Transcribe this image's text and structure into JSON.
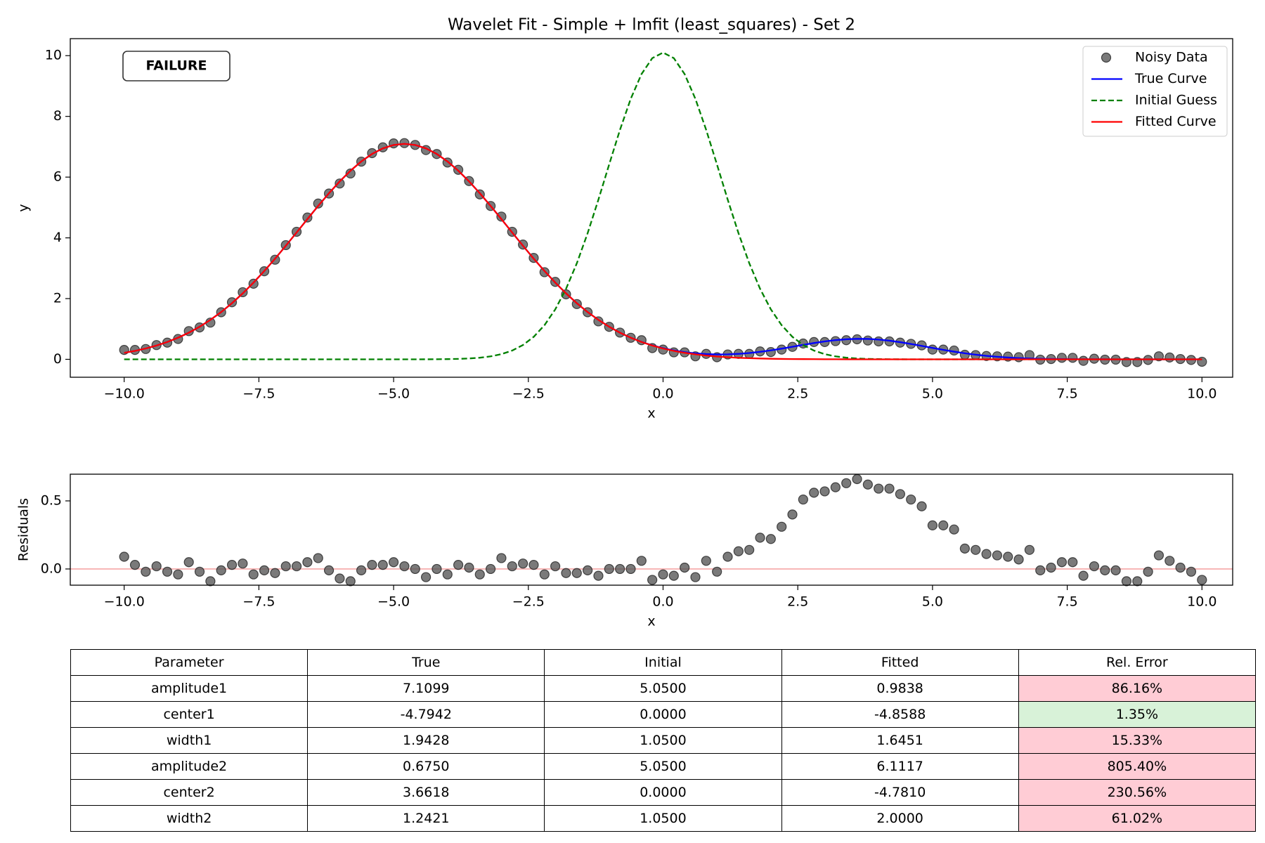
{
  "chart_data": [
    {
      "type": "line",
      "title": "Wavelet Fit - Simple + lmfit (least_squares) - Set 2",
      "xlabel": "x",
      "ylabel": "y",
      "x": [
        -10,
        -9.8,
        -9.6,
        -9.4,
        -9.2,
        -9,
        -8.8,
        -8.6,
        -8.4,
        -8.2,
        -8,
        -7.8,
        -7.6,
        -7.4,
        -7.2,
        -7,
        -6.8,
        -6.6,
        -6.4,
        -6.2,
        -6,
        -5.8,
        -5.6,
        -5.4,
        -5.2,
        -5,
        -4.8,
        -4.6,
        -4.4,
        -4.2,
        -4,
        -3.8,
        -3.6,
        -3.4,
        -3.2,
        -3,
        -2.8,
        -2.6,
        -2.4,
        -2.2,
        -2,
        -1.8,
        -1.6,
        -1.4,
        -1.2,
        -1,
        -0.8,
        -0.6,
        -0.4,
        -0.2,
        0,
        0.2,
        0.4,
        0.6,
        0.8,
        1,
        1.2,
        1.4,
        1.6,
        1.8,
        2,
        2.2,
        2.4,
        2.6,
        2.8,
        3,
        3.2,
        3.4,
        3.6,
        3.8,
        4,
        4.2,
        4.4,
        4.6,
        4.8,
        5,
        5.2,
        5.4,
        5.6,
        5.8,
        6,
        6.2,
        6.4,
        6.6,
        6.8,
        7,
        7.2,
        7.4,
        7.6,
        7.8,
        8,
        8.2,
        8.4,
        8.6,
        8.8,
        9,
        9.2,
        9.4,
        9.6,
        9.8,
        10
      ],
      "series": [
        {
          "name": "Noisy Data",
          "color": "#555555",
          "style": "markers",
          "values": [
            0.31,
            0.31,
            0.34,
            0.47,
            0.55,
            0.67,
            0.93,
            1.05,
            1.21,
            1.55,
            1.88,
            2.21,
            2.49,
            2.9,
            3.28,
            3.76,
            4.2,
            4.67,
            5.13,
            5.46,
            5.79,
            6.12,
            6.51,
            6.79,
            6.98,
            7.11,
            7.12,
            7.06,
            6.89,
            6.76,
            6.48,
            6.24,
            5.87,
            5.43,
            5.05,
            4.7,
            4.2,
            3.78,
            3.34,
            2.87,
            2.55,
            2.14,
            1.82,
            1.55,
            1.25,
            1.07,
            0.88,
            0.71,
            0.63,
            0.37,
            0.32,
            0.23,
            0.23,
            0.1,
            0.18,
            0.07,
            0.16,
            0.18,
            0.18,
            0.26,
            0.24,
            0.32,
            0.41,
            0.52,
            0.57,
            0.57,
            0.6,
            0.63,
            0.66,
            0.62,
            0.59,
            0.59,
            0.55,
            0.51,
            0.46,
            0.32,
            0.32,
            0.29,
            0.15,
            0.14,
            0.11,
            0.1,
            0.09,
            0.07,
            0.14,
            -0.01,
            0.01,
            0.05,
            0.05,
            -0.05,
            0.02,
            -0.01,
            -0.01,
            -0.09,
            -0.09,
            -0.02,
            0.1,
            0.06,
            0.01,
            -0.02,
            -0.08
          ]
        },
        {
          "name": "True Curve",
          "color": "#0000ff",
          "style": "solid",
          "values": [
            0.215,
            0.278,
            0.357,
            0.454,
            0.571,
            0.712,
            0.878,
            1.073,
            1.299,
            1.556,
            1.847,
            2.171,
            2.525,
            2.908,
            3.314,
            3.74,
            4.177,
            4.618,
            5.051,
            5.469,
            5.859,
            6.211,
            6.516,
            6.763,
            6.946,
            7.058,
            7.096,
            7.058,
            6.946,
            6.763,
            6.516,
            6.211,
            5.859,
            5.469,
            5.051,
            4.618,
            4.177,
            3.74,
            3.314,
            2.908,
            2.525,
            2.171,
            1.847,
            1.556,
            1.299,
            1.073,
            0.878,
            0.712,
            0.574,
            0.459,
            0.366,
            0.292,
            0.237,
            0.197,
            0.172,
            0.161,
            0.164,
            0.18,
            0.208,
            0.247,
            0.295,
            0.351,
            0.413,
            0.476,
            0.536,
            0.589,
            0.632,
            0.661,
            0.675,
            0.672,
            0.65,
            0.614,
            0.565,
            0.507,
            0.443,
            0.377,
            0.313,
            0.253,
            0.199,
            0.153,
            0.114,
            0.083,
            0.059,
            0.041,
            0.028,
            0.018,
            0.012,
            0.007,
            0.005,
            0.003,
            0.002,
            0.001,
            0,
            0,
            0,
            0,
            0,
            0,
            0,
            0,
            0
          ]
        },
        {
          "name": "Initial Guess",
          "color": "#008000",
          "style": "dashed",
          "values": [
            0,
            0,
            0,
            0,
            0,
            0,
            0,
            0,
            0,
            0,
            0,
            0,
            0,
            0,
            0,
            0,
            0,
            0,
            0,
            0,
            0,
            0,
            0,
            0,
            0,
            0,
            0,
            0,
            0.001,
            0.003,
            0.007,
            0.014,
            0.028,
            0.053,
            0.097,
            0.17,
            0.289,
            0.471,
            0.741,
            1.125,
            1.646,
            2.324,
            3.163,
            4.152,
            5.257,
            6.418,
            7.555,
            8.578,
            9.393,
            9.918,
            10.1,
            9.918,
            9.393,
            8.578,
            7.555,
            6.418,
            5.257,
            4.152,
            3.163,
            2.324,
            1.646,
            1.125,
            0.741,
            0.471,
            0.289,
            0.17,
            0.097,
            0.053,
            0.028,
            0.014,
            0.007,
            0.003,
            0.001,
            0,
            0,
            0,
            0,
            0,
            0,
            0,
            0,
            0,
            0,
            0,
            0,
            0,
            0,
            0,
            0,
            0,
            0,
            0,
            0,
            0,
            0,
            0,
            0,
            0,
            0,
            0,
            0
          ]
        },
        {
          "name": "Fitted Curve",
          "color": "#ff0000",
          "style": "solid",
          "values": [
            0.215,
            0.278,
            0.357,
            0.454,
            0.571,
            0.712,
            0.878,
            1.073,
            1.299,
            1.556,
            1.847,
            2.171,
            2.525,
            2.908,
            3.314,
            3.74,
            4.177,
            4.618,
            5.051,
            5.469,
            5.859,
            6.211,
            6.516,
            6.763,
            6.946,
            7.058,
            7.096,
            7.058,
            6.946,
            6.763,
            6.516,
            6.211,
            5.859,
            5.469,
            5.051,
            4.618,
            4.177,
            3.74,
            3.314,
            2.908,
            2.525,
            2.171,
            1.847,
            1.556,
            1.299,
            1.073,
            0.878,
            0.712,
            0.571,
            0.454,
            0.357,
            0.278,
            0.215,
            0.164,
            0.124,
            0.093,
            0.069,
            0.051,
            0.037,
            0.027,
            0.019,
            0.013,
            0.009,
            0.007,
            0.005,
            0.003,
            0.002,
            0.001,
            0.001,
            0,
            0,
            0,
            0,
            0,
            0,
            0,
            0,
            0,
            0,
            0,
            0,
            0,
            0,
            0,
            0,
            0,
            0,
            0,
            0,
            0,
            0,
            0,
            0,
            0,
            0,
            0,
            0,
            0,
            0,
            0,
            0
          ]
        }
      ],
      "xlim": [
        -11,
        10.57
      ],
      "ylim": [
        -0.59,
        10.56
      ],
      "xticks": [
        {
          "value": -10,
          "label": "−10.0"
        },
        {
          "value": -7.5,
          "label": "−7.5"
        },
        {
          "value": -5,
          "label": "−5.0"
        },
        {
          "value": -2.5,
          "label": "−2.5"
        },
        {
          "value": 0,
          "label": "0.0"
        },
        2.5,
        {
          "value": 5,
          "label": "5.0"
        },
        7.5,
        {
          "value": 10,
          "label": "10.0"
        }
      ],
      "yticks": [
        0,
        2,
        4,
        6,
        8,
        10
      ],
      "legend": "upper right",
      "annotation": {
        "text": "FAILURE",
        "color": "#ff0000"
      }
    },
    {
      "type": "scatter",
      "xlabel": "x",
      "ylabel": "Residuals",
      "color": "#555555",
      "x": [
        -10,
        -9.8,
        -9.6,
        -9.4,
        -9.2,
        -9,
        -8.8,
        -8.6,
        -8.4,
        -8.2,
        -8,
        -7.8,
        -7.6,
        -7.4,
        -7.2,
        -7,
        -6.8,
        -6.6,
        -6.4,
        -6.2,
        -6,
        -5.8,
        -5.6,
        -5.4,
        -5.2,
        -5,
        -4.8,
        -4.6,
        -4.4,
        -4.2,
        -4,
        -3.8,
        -3.6,
        -3.4,
        -3.2,
        -3,
        -2.8,
        -2.6,
        -2.4,
        -2.2,
        -2,
        -1.8,
        -1.6,
        -1.4,
        -1.2,
        -1,
        -0.8,
        -0.6,
        -0.4,
        -0.2,
        0,
        0.2,
        0.4,
        0.6,
        0.8,
        1,
        1.2,
        1.4,
        1.6,
        1.8,
        2,
        2.2,
        2.4,
        2.6,
        2.8,
        3,
        3.2,
        3.4,
        3.6,
        3.8,
        4,
        4.2,
        4.4,
        4.6,
        4.8,
        5,
        5.2,
        5.4,
        5.6,
        5.8,
        6,
        6.2,
        6.4,
        6.6,
        6.8,
        7,
        7.2,
        7.4,
        7.6,
        7.8,
        8,
        8.2,
        8.4,
        8.6,
        8.8,
        9,
        9.2,
        9.4,
        9.6,
        9.8,
        10
      ],
      "values": [
        0.09,
        0.03,
        -0.02,
        0.02,
        -0.02,
        -0.04,
        0.05,
        -0.02,
        -0.09,
        -0.01,
        0.03,
        0.04,
        -0.04,
        -0.01,
        -0.03,
        0.02,
        0.02,
        0.05,
        0.08,
        -0.01,
        -0.07,
        -0.09,
        -0.01,
        0.03,
        0.03,
        0.05,
        0.02,
        0,
        -0.06,
        0,
        -0.04,
        0.03,
        0.01,
        -0.04,
        0,
        0.08,
        0.02,
        0.04,
        0.03,
        -0.04,
        0.02,
        -0.03,
        -0.03,
        -0.01,
        -0.05,
        0,
        0,
        0,
        0.06,
        -0.08,
        -0.04,
        -0.05,
        0.01,
        -0.06,
        0.06,
        -0.02,
        0.09,
        0.13,
        0.14,
        0.23,
        0.22,
        0.31,
        0.4,
        0.51,
        0.56,
        0.57,
        0.6,
        0.63,
        0.66,
        0.62,
        0.59,
        0.59,
        0.55,
        0.51,
        0.46,
        0.32,
        0.32,
        0.29,
        0.15,
        0.14,
        0.11,
        0.1,
        0.09,
        0.07,
        0.14,
        -0.01,
        0.01,
        0.05,
        0.05,
        -0.05,
        0.02,
        -0.01,
        -0.01,
        -0.09,
        -0.09,
        -0.02,
        0.1,
        0.06,
        0.01,
        -0.02,
        -0.08
      ],
      "hline": {
        "y": 0,
        "color": "#f7b4b4"
      },
      "xlim": [
        -11,
        10.57
      ],
      "ylim": [
        -0.119,
        0.696
      ],
      "xticks": [
        {
          "value": -10,
          "label": "−10.0"
        },
        {
          "value": -7.5,
          "label": "−7.5"
        },
        {
          "value": -5,
          "label": "−5.0"
        },
        {
          "value": -2.5,
          "label": "−2.5"
        },
        {
          "value": 0,
          "label": "0.0"
        },
        2.5,
        {
          "value": 5,
          "label": "5.0"
        },
        7.5,
        {
          "value": 10,
          "label": "10.0"
        }
      ],
      "yticks": [
        {
          "value": 0,
          "label": "0.0"
        },
        0.5
      ]
    }
  ],
  "table": {
    "header": [
      "Parameter",
      "True",
      "Initial",
      "Fitted",
      "Rel. Error"
    ],
    "rows": [
      [
        "amplitude1",
        "7.1099",
        "5.0500",
        "0.9838",
        "86.16%"
      ],
      [
        "center1",
        "-4.7942",
        "0.0000",
        "-4.8588",
        "1.35%"
      ],
      [
        "width1",
        "1.9428",
        "1.0500",
        "1.6451",
        "15.33%"
      ],
      [
        "amplitude2",
        "0.6750",
        "5.0500",
        "6.1117",
        "805.40%"
      ],
      [
        "center2",
        "3.6618",
        "0.0000",
        "-4.7810",
        "230.56%"
      ],
      [
        "width2",
        "1.2421",
        "1.0500",
        "2.0000",
        "61.02%"
      ]
    ],
    "rel_error_colors": [
      "#ffccd5",
      "#d8f2d8",
      "#ffccd5",
      "#ffccd5",
      "#ffccd5",
      "#ffccd5"
    ]
  }
}
